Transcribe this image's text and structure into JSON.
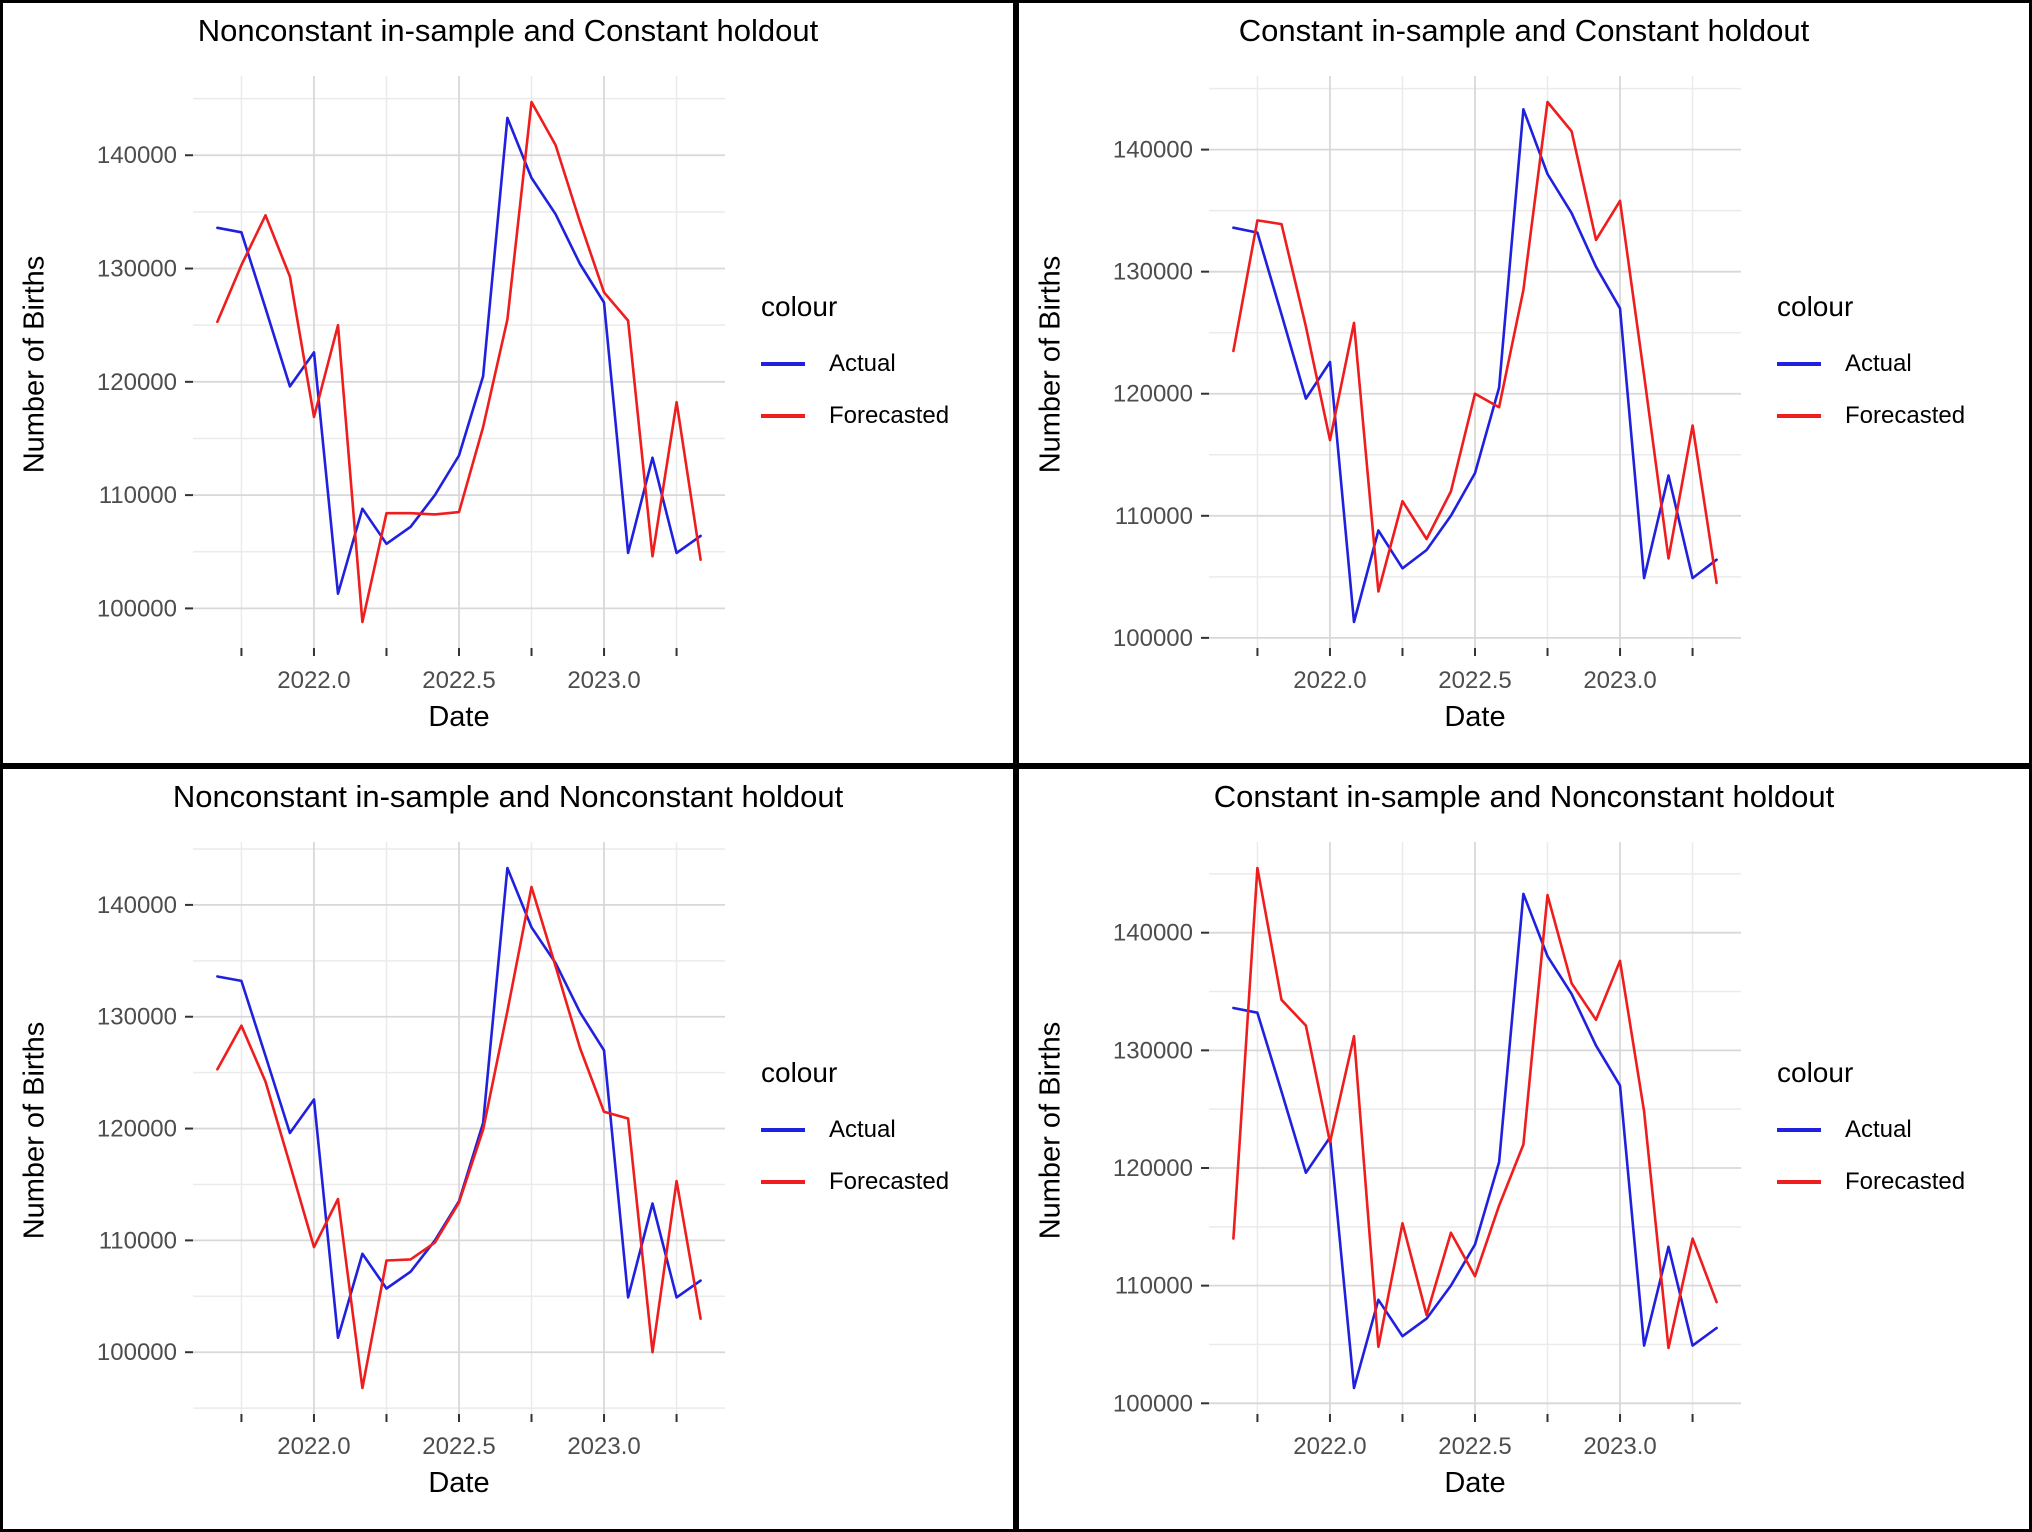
{
  "page": {
    "background": "#ffffff",
    "border_color": "#000000"
  },
  "colors": {
    "actual": "#2020df",
    "forecasted": "#ef1d1d",
    "grid_major": "#d8d8d8",
    "grid_minor": "#ebebeb",
    "tick_label": "#4d4d4d",
    "tick_mark": "#333333",
    "text": "#000000"
  },
  "legend": {
    "title": "colour",
    "items": [
      {
        "label": "Actual",
        "color": "#2020df"
      },
      {
        "label": "Forecasted",
        "color": "#ef1d1d"
      }
    ]
  },
  "axes": {
    "x_title": "Date",
    "y_title": "Number of Births",
    "x_tick_labels": [
      "2022.0",
      "2022.5",
      "2023.0"
    ],
    "x_tick_values": [
      2022.0,
      2022.5,
      2023.0
    ],
    "x_minor_values": [
      2021.75,
      2022.25,
      2022.75,
      2023.25
    ],
    "y_tick_labels": [
      "100000",
      "110000",
      "120000",
      "130000",
      "140000"
    ],
    "y_tick_values": [
      100000,
      110000,
      120000,
      130000,
      140000
    ],
    "y_minor_values": [
      95000,
      105000,
      115000,
      125000,
      135000,
      145000
    ],
    "grid": true,
    "legend_position": "right"
  },
  "chart_data": [
    {
      "type": "line",
      "title": "Nonconstant in-sample and Constant holdout",
      "xlabel": "Date",
      "ylabel": "Number of Births",
      "x": [
        2021.667,
        2021.75,
        2021.833,
        2021.917,
        2022.0,
        2022.083,
        2022.167,
        2022.25,
        2022.333,
        2022.417,
        2022.5,
        2022.583,
        2022.667,
        2022.75,
        2022.833,
        2022.917,
        2023.0,
        2023.083,
        2023.167,
        2023.25,
        2023.333
      ],
      "series": [
        {
          "name": "Actual",
          "values": [
            133600,
            133200,
            126500,
            119600,
            122600,
            101300,
            108800,
            105700,
            107200,
            110000,
            113500,
            120500,
            143300,
            138000,
            134800,
            130400,
            127000,
            104900,
            113300,
            104900,
            106400
          ]
        },
        {
          "name": "Forecasted",
          "values": [
            125300,
            130300,
            134700,
            129300,
            116900,
            125000,
            98800,
            108400,
            108400,
            108300,
            108500,
            116000,
            125500,
            144700,
            140900,
            134100,
            127900,
            125400,
            104600,
            118200,
            104300
          ]
        }
      ]
    },
    {
      "type": "line",
      "title": "Constant in-sample and Constant holdout",
      "xlabel": "Date",
      "ylabel": "Number of Births",
      "x": [
        2021.667,
        2021.75,
        2021.833,
        2021.917,
        2022.0,
        2022.083,
        2022.167,
        2022.25,
        2022.333,
        2022.417,
        2022.5,
        2022.583,
        2022.667,
        2022.75,
        2022.833,
        2022.917,
        2023.0,
        2023.083,
        2023.167,
        2023.25,
        2023.333
      ],
      "series": [
        {
          "name": "Actual",
          "values": [
            133600,
            133200,
            126500,
            119600,
            122600,
            101300,
            108800,
            105700,
            107200,
            110000,
            113500,
            120500,
            143300,
            138000,
            134800,
            130400,
            127000,
            104900,
            113300,
            104900,
            106400
          ]
        },
        {
          "name": "Forecasted",
          "values": [
            123500,
            134200,
            133900,
            125500,
            116200,
            125800,
            103800,
            111200,
            108100,
            112000,
            120000,
            118900,
            128500,
            143900,
            141500,
            132600,
            135800,
            121500,
            106500,
            117400,
            104500
          ]
        }
      ]
    },
    {
      "type": "line",
      "title": "Nonconstant in-sample and Nonconstant holdout",
      "xlabel": "Date",
      "ylabel": "Number of Births",
      "x": [
        2021.667,
        2021.75,
        2021.833,
        2021.917,
        2022.0,
        2022.083,
        2022.167,
        2022.25,
        2022.333,
        2022.417,
        2022.5,
        2022.583,
        2022.667,
        2022.75,
        2022.833,
        2022.917,
        2023.0,
        2023.083,
        2023.167,
        2023.25,
        2023.333
      ],
      "series": [
        {
          "name": "Actual",
          "values": [
            133600,
            133200,
            126500,
            119600,
            122600,
            101300,
            108800,
            105700,
            107200,
            110000,
            113500,
            120500,
            143300,
            138000,
            134800,
            130400,
            127000,
            104900,
            113300,
            104900,
            106400
          ]
        },
        {
          "name": "Forecasted",
          "values": [
            125300,
            129200,
            124200,
            116800,
            109400,
            113700,
            96800,
            108200,
            108300,
            109800,
            113400,
            119900,
            130500,
            141600,
            134500,
            127200,
            121500,
            120900,
            100000,
            115300,
            103000
          ]
        }
      ]
    },
    {
      "type": "line",
      "title": "Constant in-sample and Nonconstant holdout",
      "xlabel": "Date",
      "ylabel": "Number of Births",
      "x": [
        2021.667,
        2021.75,
        2021.833,
        2021.917,
        2022.0,
        2022.083,
        2022.167,
        2022.25,
        2022.333,
        2022.417,
        2022.5,
        2022.583,
        2022.667,
        2022.75,
        2022.833,
        2022.917,
        2023.0,
        2023.083,
        2023.167,
        2023.25,
        2023.333
      ],
      "series": [
        {
          "name": "Actual",
          "values": [
            133600,
            133200,
            126500,
            119600,
            122600,
            101300,
            108800,
            105700,
            107200,
            110000,
            113500,
            120500,
            143300,
            138000,
            134800,
            130400,
            127000,
            104900,
            113300,
            104900,
            106400
          ]
        },
        {
          "name": "Forecasted",
          "values": [
            114000,
            145500,
            134300,
            132100,
            122200,
            131200,
            104800,
            115300,
            107500,
            114500,
            110800,
            116800,
            122000,
            143200,
            135700,
            132600,
            137600,
            124800,
            104700,
            114000,
            108600
          ]
        }
      ]
    }
  ]
}
